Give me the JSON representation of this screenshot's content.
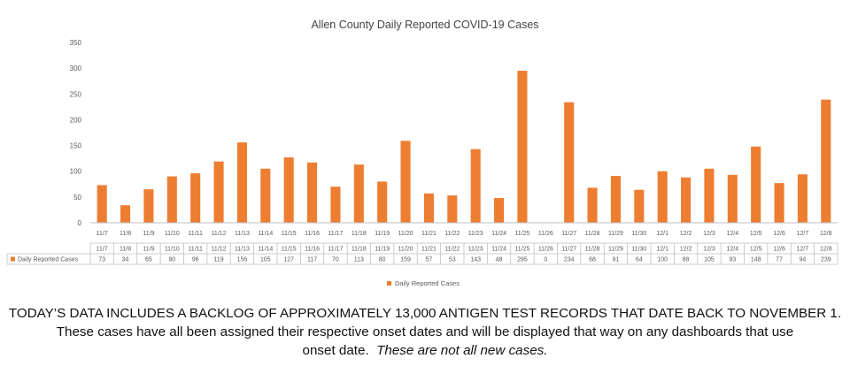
{
  "chart_data": {
    "type": "bar",
    "title": "Allen County Daily Reported COVID-19 Cases",
    "categories": [
      "11/7",
      "11/8",
      "11/9",
      "11/10",
      "11/11",
      "11/12",
      "11/13",
      "11/14",
      "11/15",
      "11/16",
      "11/17",
      "11/18",
      "11/19",
      "11/20",
      "11/21",
      "11/22",
      "11/23",
      "11/24",
      "11/25",
      "11/26",
      "11/27",
      "11/28",
      "11/29",
      "11/30",
      "12/1",
      "12/2",
      "12/3",
      "12/4",
      "12/5",
      "12/6",
      "12/7",
      "12/8"
    ],
    "series": [
      {
        "name": "Daily Reported Cases",
        "color": "#ED7D31",
        "values": [
          73,
          34,
          65,
          90,
          96,
          119,
          156,
          105,
          127,
          117,
          70,
          113,
          80,
          159,
          57,
          53,
          143,
          48,
          295,
          0,
          234,
          68,
          91,
          64,
          100,
          88,
          105,
          93,
          148,
          77,
          94,
          239
        ]
      }
    ],
    "ylim": [
      0,
      350
    ],
    "yticks": [
      0,
      50,
      100,
      150,
      200,
      250,
      300,
      350
    ],
    "grid": false,
    "data_table": true,
    "legend": "bottom-center"
  },
  "notice": {
    "line1": "TODAY’S DATA INCLUDES A BACKLOG OF APPROXIMATELY 13,000 ANTIGEN TEST RECORDS THAT DATE BACK TO NOVEMBER 1.",
    "line2": "These cases have all been assigned their respective onset dates and will be displayed that way on any dashboards that use",
    "line3_main": "onset date.",
    "line3_emphasis": "These are not all new cases."
  }
}
